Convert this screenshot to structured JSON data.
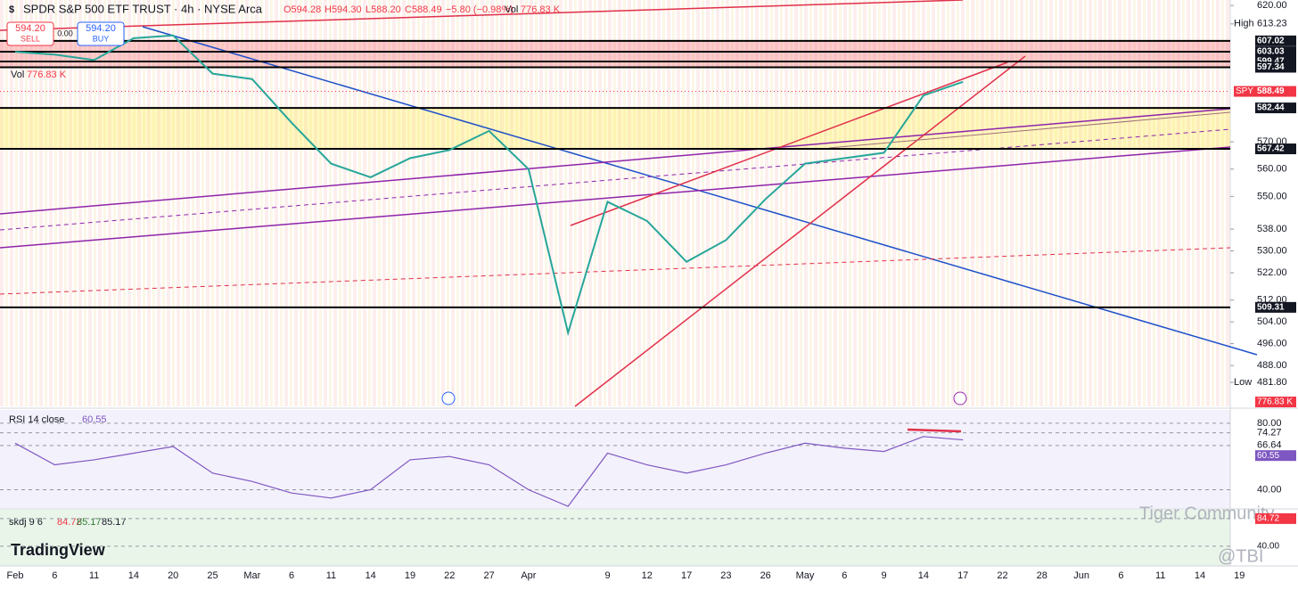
{
  "chart_data": {
    "type": "line",
    "title": "SPDR S&P 500 ETF TRUST · 4h · NYSE Arca",
    "ohlc": [
      "O594.28",
      "H594.30",
      "L588.20",
      "C588.49"
    ],
    "change": "−5.80 (−0.98%)",
    "volume": {
      "label": "Vol",
      "value": "776.83 K"
    },
    "sell": {
      "price": "594.20",
      "label": "SELL"
    },
    "spread": "0.00",
    "buy": {
      "price": "594.20",
      "label": "BUY"
    },
    "categories": [
      "Feb",
      "6",
      "11",
      "14",
      "20",
      "25",
      "Mar",
      "6",
      "11",
      "14",
      "19",
      "22",
      "27",
      "Apr",
      null,
      "9",
      "12",
      "17",
      "23",
      "26",
      "May",
      "6",
      "9",
      "14",
      "17",
      "22",
      "28",
      "Jun",
      "6",
      "11",
      "14",
      "19"
    ],
    "series": [
      {
        "name": "SPY",
        "color": "#26a69a",
        "values": [
          603,
          602,
          600,
          608,
          609,
          595,
          593,
          577,
          562,
          557,
          564,
          567,
          574,
          560,
          500,
          548,
          541,
          526,
          534,
          549,
          562,
          564,
          566,
          587,
          592,
          null,
          null,
          null,
          null,
          null,
          null,
          null
        ]
      }
    ],
    "last": {
      "value": 588.49,
      "label": "588.49"
    },
    "ylim": [
      473,
      622
    ],
    "yticks": [
      {
        "value": 620,
        "label": "620.00"
      },
      {
        "value": 570,
        "label": "570.00"
      },
      {
        "value": 560,
        "label": "560.00"
      },
      {
        "value": 550,
        "label": "550.00"
      },
      {
        "value": 538,
        "label": "538.00"
      },
      {
        "value": 530,
        "label": "530.00"
      },
      {
        "value": 522,
        "label": "522.00"
      },
      {
        "value": 512,
        "label": "512.00"
      },
      {
        "value": 504,
        "label": "504.00"
      },
      {
        "value": 496,
        "label": "496.00"
      },
      {
        "value": 488,
        "label": "488.00"
      }
    ],
    "high": {
      "name": "High",
      "value": 613.23,
      "label": "613.23"
    },
    "low": {
      "name": "Low",
      "value": 481.8,
      "label": "481.80"
    },
    "levels": [
      {
        "value": 607.02,
        "label": "607.02"
      },
      {
        "value": 603.03,
        "label": "603.03"
      },
      {
        "value": 599.47,
        "label": "599.47"
      },
      {
        "value": 597.34,
        "label": "597.34"
      },
      {
        "value": 582.44,
        "label": "582.44"
      },
      {
        "value": 567.42,
        "label": "567.42"
      },
      {
        "value": 509.31,
        "label": "509.31"
      }
    ],
    "rsi": {
      "title": "RSI 14 close",
      "current": {
        "value": 60.55,
        "label": "60.55"
      },
      "ylim": [
        29,
        88
      ],
      "yticks": [
        {
          "value": 80,
          "label": "80.00"
        },
        {
          "value": 74.27,
          "label": "74.27"
        },
        {
          "value": 66.64,
          "label": "66.64"
        },
        {
          "value": 40,
          "label": "40.00"
        }
      ],
      "values": [
        68,
        55,
        58,
        62,
        66,
        50,
        45,
        38,
        35,
        40,
        58,
        60,
        55,
        40,
        30,
        62,
        55,
        50,
        55,
        62,
        68,
        65,
        63,
        72,
        70,
        null,
        null,
        null,
        null,
        null,
        null,
        null
      ]
    },
    "skdj": {
      "title": "skdj 9 6",
      "readings": [
        "84.72",
        "85.17",
        "85.17"
      ],
      "ylim": [
        8,
        99
      ],
      "yticks": [
        {
          "value": 84.72,
          "label": "84.72"
        },
        {
          "value": 40,
          "label": "40.00"
        }
      ]
    },
    "brand": "TradingView",
    "watermark": "Tiger Community",
    "handle": "@TBI"
  }
}
